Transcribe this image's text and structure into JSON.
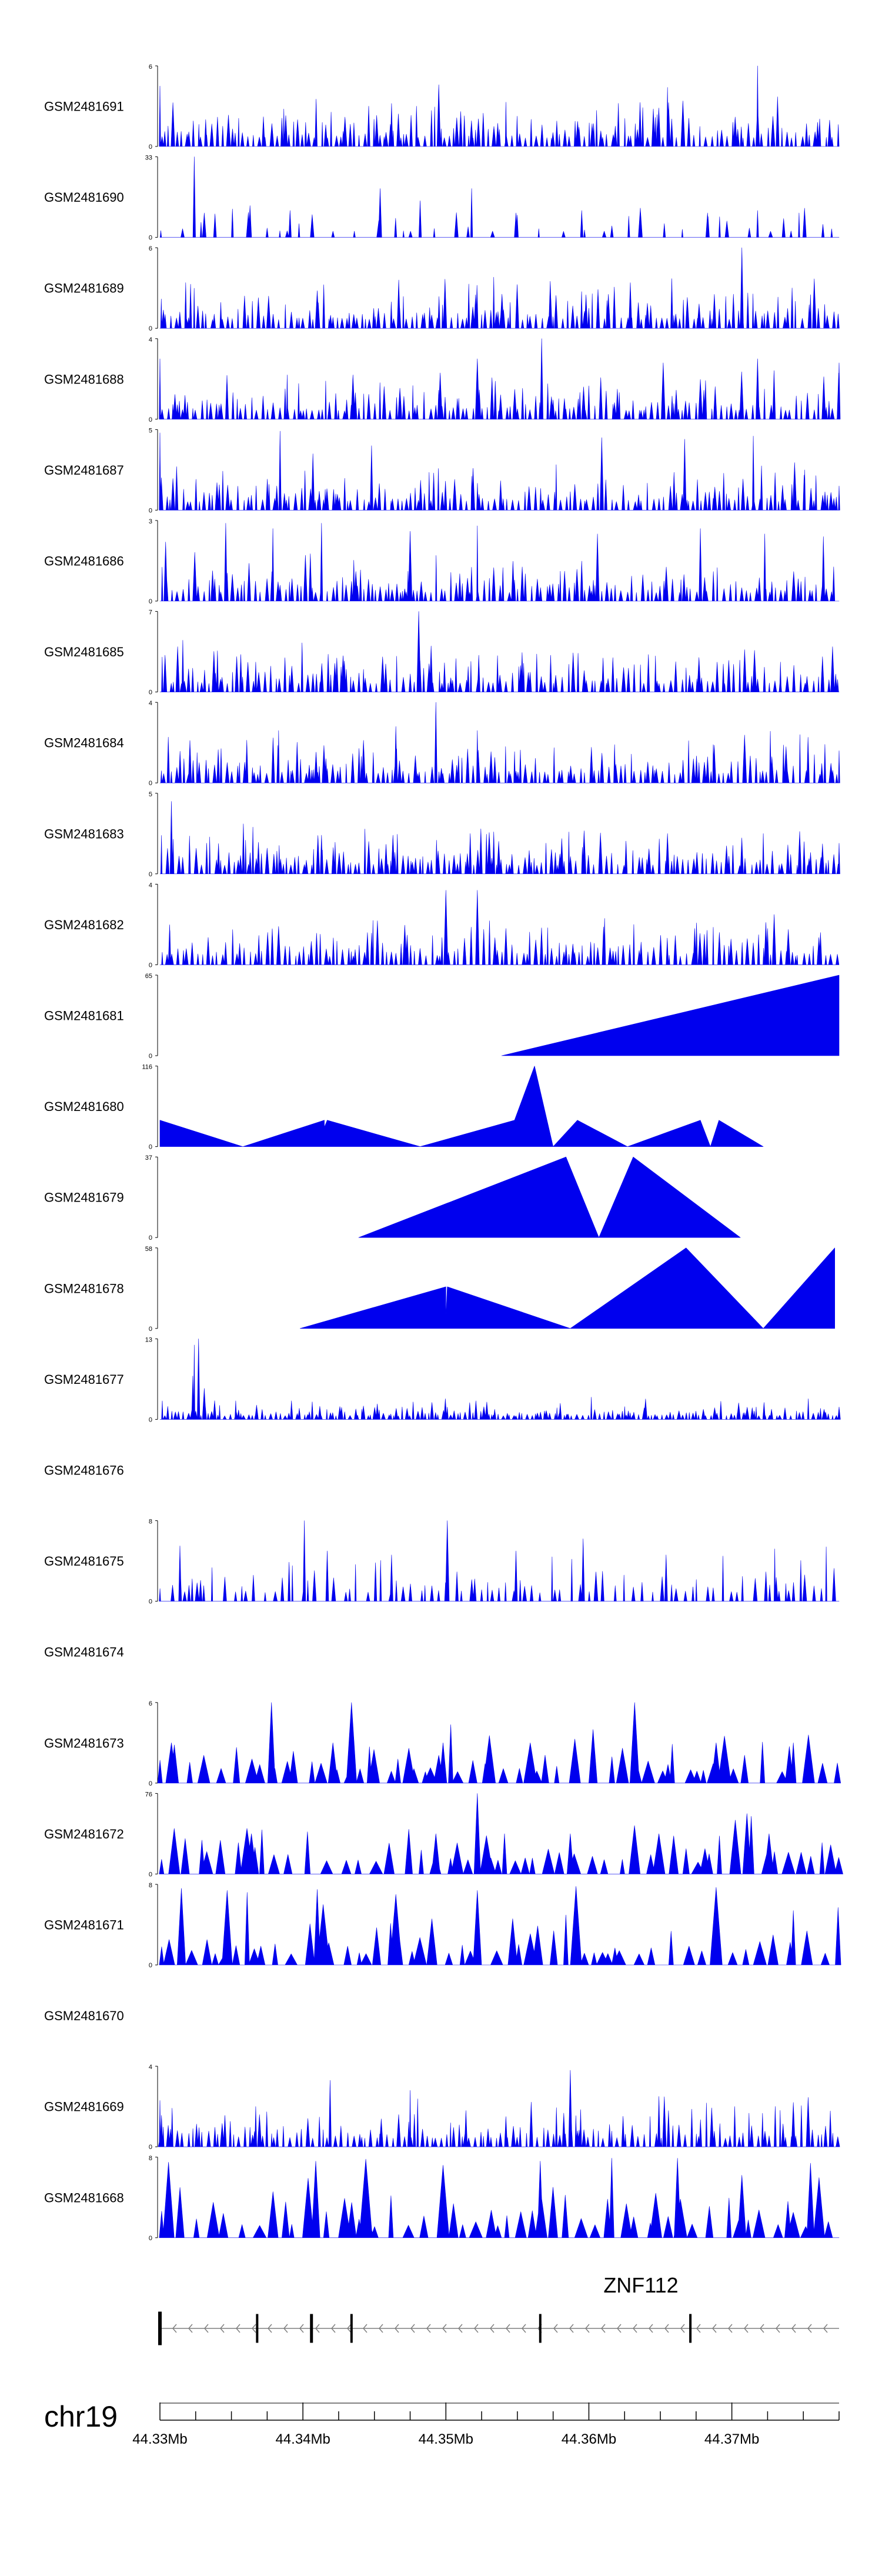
{
  "chart_data": {
    "type": "area",
    "chromosome": "chr19",
    "xlim": [
      44.33,
      44.3775
    ],
    "x_ticks": [
      {
        "value": 44.33,
        "label": "44.33Mb"
      },
      {
        "value": 44.34,
        "label": "44.34Mb"
      },
      {
        "value": 44.35,
        "label": "44.35Mb"
      },
      {
        "value": 44.36,
        "label": "44.36Mb"
      },
      {
        "value": 44.37,
        "label": "44.37Mb"
      }
    ],
    "gene": {
      "name": "ZNF112",
      "strand": "-",
      "start": 44.33,
      "end": 44.3775,
      "exons": [
        44.33,
        44.3368,
        44.3406,
        44.3434,
        44.3566,
        44.3671
      ]
    },
    "tracks": [
      {
        "name": "GSM2481691",
        "ymax": 6,
        "ymax_label": "6",
        "peaks": [
          [
            44.33,
            4.5
          ],
          [
            44.3332,
            2
          ],
          [
            44.3388,
            2.3
          ],
          [
            44.3462,
            3.2
          ],
          [
            44.3495,
            4.6
          ],
          [
            44.3542,
            3.3
          ],
          [
            44.3655,
            4.4
          ],
          [
            44.3718,
            6
          ],
          [
            44.3732,
            3.7
          ],
          [
            44.376,
            1.8
          ]
        ],
        "profile": "dense",
        "seed": 11
      },
      {
        "name": "GSM2481690",
        "ymax": 33,
        "ymax_label": "33",
        "peaks": [
          [
            44.3324,
            33
          ],
          [
            44.3331,
            10
          ],
          [
            44.3363,
            13
          ],
          [
            44.3391,
            11
          ],
          [
            44.3454,
            20
          ],
          [
            44.3482,
            15
          ],
          [
            44.3518,
            20
          ],
          [
            44.3549,
            10
          ],
          [
            44.3595,
            11
          ],
          [
            44.3636,
            12
          ],
          [
            44.3683,
            10
          ],
          [
            44.3718,
            11
          ],
          [
            44.3747,
            10
          ]
        ],
        "profile": "sparse",
        "seed": 2
      },
      {
        "name": "GSM2481689",
        "ymax": 6,
        "ymax_label": "6",
        "peaks": [
          [
            44.3318,
            3.4
          ],
          [
            44.3376,
            2.4
          ],
          [
            44.341,
            2.8
          ],
          [
            44.3467,
            3.6
          ],
          [
            44.3516,
            3.3
          ],
          [
            44.3573,
            3.5
          ],
          [
            44.3629,
            3.4
          ],
          [
            44.3658,
            3.7
          ],
          [
            44.3707,
            6
          ],
          [
            44.3755,
            2.5
          ]
        ],
        "profile": "dense",
        "seed": 13
      },
      {
        "name": "GSM2481688",
        "ymax": 4,
        "ymax_label": "4",
        "peaks": [
          [
            44.33,
            3
          ],
          [
            44.3389,
            2.2
          ],
          [
            44.3435,
            2.2
          ],
          [
            44.3496,
            2.3
          ],
          [
            44.3522,
            3
          ],
          [
            44.3567,
            4
          ],
          [
            44.3652,
            2.8
          ],
          [
            44.3718,
            3
          ],
          [
            44.3775,
            2.8
          ]
        ],
        "profile": "dense",
        "seed": 17
      },
      {
        "name": "GSM2481687",
        "ymax": 5,
        "ymax_label": "5",
        "peaks": [
          [
            44.33,
            4.8
          ],
          [
            44.3384,
            4.9
          ],
          [
            44.3407,
            3.5
          ],
          [
            44.3448,
            4
          ],
          [
            44.3519,
            2.6
          ],
          [
            44.3609,
            4.5
          ],
          [
            44.3667,
            4.4
          ],
          [
            44.3715,
            4.6
          ],
          [
            44.3751,
            2.5
          ],
          [
            44.3775,
            1.5
          ]
        ],
        "profile": "dense",
        "seed": 19
      },
      {
        "name": "GSM2481686",
        "ymax": 3,
        "ymax_label": "3",
        "peaks": [
          [
            44.3304,
            2.2
          ],
          [
            44.3346,
            2.9
          ],
          [
            44.3379,
            2.7
          ],
          [
            44.3413,
            2.9
          ],
          [
            44.3475,
            2.6
          ],
          [
            44.3522,
            2.8
          ],
          [
            44.3606,
            2.5
          ],
          [
            44.3678,
            2.7
          ],
          [
            44.3723,
            2.5
          ],
          [
            44.3764,
            2.4
          ]
        ],
        "profile": "dense",
        "seed": 23
      },
      {
        "name": "GSM2481685",
        "ymax": 7,
        "ymax_label": "7",
        "peaks": [
          [
            44.3316,
            4.5
          ],
          [
            44.3367,
            2.6
          ],
          [
            44.3429,
            2.7
          ],
          [
            44.3481,
            7
          ],
          [
            44.3523,
            3.2
          ],
          [
            44.3589,
            3.4
          ],
          [
            44.3677,
            3
          ],
          [
            44.3734,
            2.6
          ],
          [
            44.377,
            2
          ]
        ],
        "profile": "dense",
        "seed": 29
      },
      {
        "name": "GSM2481684",
        "ymax": 4,
        "ymax_label": "4",
        "peaks": [
          [
            44.3326,
            1.5
          ],
          [
            44.3383,
            2.6
          ],
          [
            44.3465,
            2.8
          ],
          [
            44.3493,
            4
          ],
          [
            44.3522,
            2.6
          ],
          [
            44.3618,
            1.9
          ],
          [
            44.3687,
            1.9
          ],
          [
            44.3728,
            1.3
          ],
          [
            44.3775,
            1.6
          ]
        ],
        "profile": "dense",
        "seed": 31
      },
      {
        "name": "GSM2481683",
        "ymax": 5,
        "ymax_label": "5",
        "peaks": [
          [
            44.3308,
            4.5
          ],
          [
            44.3365,
            2.9
          ],
          [
            44.3413,
            2.4
          ],
          [
            44.3463,
            2.4
          ],
          [
            44.3517,
            2.5
          ],
          [
            44.3586,
            2.6
          ],
          [
            44.3655,
            2.5
          ],
          [
            44.3722,
            2.5
          ],
          [
            44.3775,
            1.9
          ]
        ],
        "profile": "dense",
        "seed": 37
      },
      {
        "name": "GSM2481682",
        "ymax": 4,
        "ymax_label": "4",
        "peaks": [
          [
            44.3307,
            1.7
          ],
          [
            44.3383,
            1.9
          ],
          [
            44.3449,
            2.2
          ],
          [
            44.35,
            3.7
          ],
          [
            44.3522,
            3.7
          ],
          [
            44.3542,
            1.8
          ],
          [
            44.3611,
            2.3
          ],
          [
            44.3674,
            1.8
          ],
          [
            44.3725,
            1.8
          ],
          [
            44.3762,
            1.6
          ]
        ],
        "profile": "dense",
        "seed": 41
      },
      {
        "name": "GSM2481681",
        "ymax": 65,
        "ymax_label": "65",
        "polygon": [
          [
            44.3539,
            0
          ],
          [
            44.3775,
            65
          ],
          [
            44.3775,
            0
          ]
        ],
        "profile": "polygon"
      },
      {
        "name": "GSM2481680",
        "ymax": 116,
        "ymax_label": "116",
        "polygon": [
          [
            44.33,
            38
          ],
          [
            44.3358,
            0
          ],
          [
            44.3415,
            38
          ],
          [
            44.3415,
            28
          ],
          [
            44.3417,
            38
          ],
          [
            44.3482,
            0
          ],
          [
            44.3548,
            38
          ],
          [
            44.3562,
            116
          ],
          [
            44.3575,
            0
          ],
          [
            44.3592,
            38
          ],
          [
            44.3627,
            0
          ],
          [
            44.3678,
            38
          ],
          [
            44.3685,
            0
          ],
          [
            44.3691,
            38
          ],
          [
            44.3722,
            0
          ]
        ],
        "profile": "polygon"
      },
      {
        "name": "GSM2481679",
        "ymax": 37,
        "ymax_label": "37",
        "polygon": [
          [
            44.3439,
            0
          ],
          [
            44.3584,
            37
          ],
          [
            44.3607,
            0
          ],
          [
            44.3631,
            37
          ],
          [
            44.3706,
            0
          ]
        ],
        "profile": "polygon"
      },
      {
        "name": "GSM2481678",
        "ymax": 58,
        "ymax_label": "58",
        "polygon": [
          [
            44.3398,
            0
          ],
          [
            44.35,
            30
          ],
          [
            44.35,
            8
          ],
          [
            44.3501,
            30
          ],
          [
            44.3587,
            0
          ],
          [
            44.3668,
            58
          ],
          [
            44.3722,
            0
          ],
          [
            44.3772,
            58
          ],
          [
            44.3772,
            0
          ]
        ],
        "profile": "polygon"
      },
      {
        "name": "GSM2481677",
        "ymax": 13,
        "ymax_label": "13",
        "peaks": [
          [
            44.3323,
            7
          ],
          [
            44.3324,
            12
          ],
          [
            44.3327,
            13
          ],
          [
            44.3331,
            5
          ],
          [
            44.3353,
            3
          ],
          [
            44.3392,
            3
          ],
          [
            44.3452,
            2.5
          ],
          [
            44.3521,
            3
          ],
          [
            44.358,
            2.6
          ],
          [
            44.3717,
            2
          ],
          [
            44.3775,
            2
          ]
        ],
        "profile": "lowdense",
        "seed": 47
      },
      {
        "name": "GSM2481676",
        "ymax": null,
        "ymax_label": "",
        "profile": "empty"
      },
      {
        "name": "GSM2481675",
        "ymax": 8,
        "ymax_label": "8",
        "peaks": [
          [
            44.3314,
            5.5
          ],
          [
            44.3401,
            8
          ],
          [
            44.3417,
            5
          ],
          [
            44.3462,
            4.6
          ],
          [
            44.3501,
            8
          ],
          [
            44.3549,
            5
          ],
          [
            44.3596,
            6.2
          ],
          [
            44.3654,
            4.6
          ],
          [
            44.373,
            5.2
          ],
          [
            44.3766,
            5.4
          ]
        ],
        "profile": "medium",
        "seed": 53
      },
      {
        "name": "GSM2481674",
        "ymax": null,
        "ymax_label": "",
        "profile": "empty"
      },
      {
        "name": "GSM2481673",
        "ymax": 6,
        "ymax_label": "6",
        "peaks": [
          [
            44.3308,
            3
          ],
          [
            44.3378,
            6
          ],
          [
            44.3421,
            3
          ],
          [
            44.3434,
            6
          ],
          [
            44.3498,
            3
          ],
          [
            44.3559,
            3
          ],
          [
            44.3632,
            6
          ],
          [
            44.3689,
            3
          ],
          [
            44.3743,
            3
          ]
        ],
        "profile": "triangles",
        "seed": 59
      },
      {
        "name": "GSM2481672",
        "ymax": 76,
        "ymax_label": "76",
        "peaks": [
          [
            44.3364,
            38
          ],
          [
            44.3493,
            38
          ],
          [
            44.3522,
            76
          ],
          [
            44.3541,
            38
          ],
          [
            44.3587,
            38
          ],
          [
            44.3649,
            38
          ],
          [
            44.3726,
            38
          ]
        ],
        "profile": "triangles",
        "seed": 61
      },
      {
        "name": "GSM2481671",
        "ymax": 8,
        "ymax_label": "8",
        "peaks": [
          [
            44.3315,
            7.6
          ],
          [
            44.3347,
            7.4
          ],
          [
            44.3361,
            7.2
          ],
          [
            44.341,
            7.5
          ],
          [
            44.3465,
            7
          ],
          [
            44.3522,
            7.4
          ],
          [
            44.3591,
            7.8
          ],
          [
            44.3689,
            7.7
          ],
          [
            44.3743,
            5.4
          ]
        ],
        "profile": "triangles",
        "seed": 67
      },
      {
        "name": "GSM2481670",
        "ymax": null,
        "ymax_label": "",
        "profile": "empty"
      },
      {
        "name": "GSM2481669",
        "ymax": 4,
        "ymax_label": "4",
        "peaks": [
          [
            44.33,
            2.3
          ],
          [
            44.3367,
            2
          ],
          [
            44.3419,
            3.3
          ],
          [
            44.3475,
            2.8
          ],
          [
            44.3514,
            1.8
          ],
          [
            44.3587,
            3.8
          ],
          [
            44.3649,
            2.5
          ],
          [
            44.3702,
            2
          ],
          [
            44.3743,
            2.2
          ]
        ],
        "profile": "dense",
        "seed": 71
      },
      {
        "name": "GSM2481668",
        "ymax": 8,
        "ymax_label": "8",
        "peaks": [
          [
            44.3306,
            7.5
          ],
          [
            44.3409,
            7.6
          ],
          [
            44.3444,
            7.8
          ],
          [
            44.3498,
            7.2
          ],
          [
            44.3566,
            7.6
          ],
          [
            44.3616,
            7.9
          ],
          [
            44.3662,
            7.9
          ],
          [
            44.3707,
            6.2
          ],
          [
            44.3755,
            7.4
          ]
        ],
        "profile": "triangles",
        "seed": 73
      }
    ]
  }
}
